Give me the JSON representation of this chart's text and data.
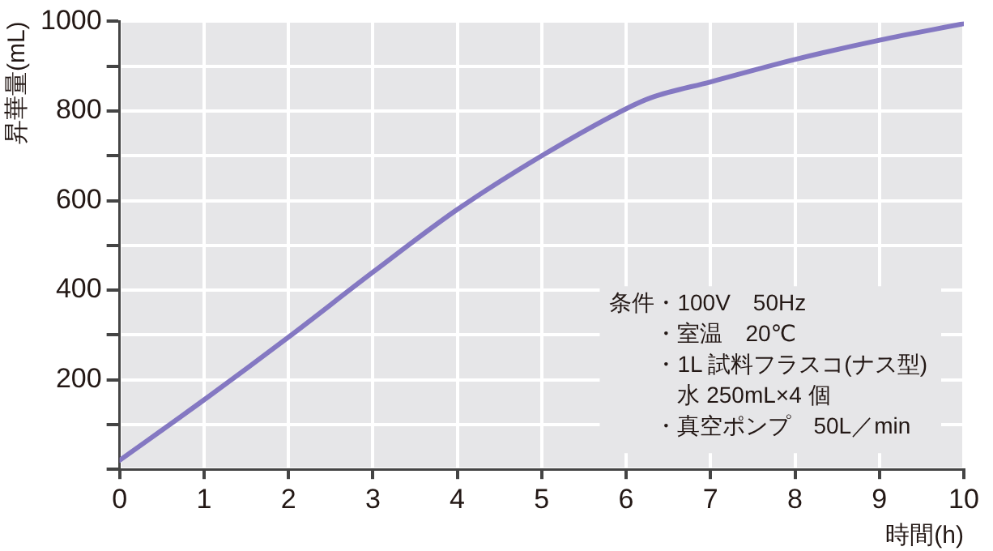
{
  "chart_data": {
    "type": "line",
    "xlabel": "時間(h)",
    "ylabel": "昇華量(mL)",
    "x": [
      0,
      1,
      2,
      3,
      4,
      5,
      6,
      6.3,
      7,
      8,
      9,
      10
    ],
    "series": [
      {
        "color": "#8478c2",
        "values": [
          20,
          155,
          295,
          440,
          580,
          700,
          805,
          830,
          865,
          915,
          958,
          995
        ]
      }
    ],
    "xlim": [
      0,
      10
    ],
    "xticks": [
      0,
      1,
      2,
      3,
      4,
      5,
      6,
      7,
      8,
      9,
      10
    ],
    "ylim": [
      0,
      1000
    ],
    "yticks": [
      {
        "value": 0,
        "label": null
      },
      {
        "value": 100,
        "label": null
      },
      200,
      {
        "value": 300,
        "label": null
      },
      400,
      {
        "value": 500,
        "label": null
      },
      600,
      {
        "value": 700,
        "label": null
      },
      800,
      {
        "value": 900,
        "label": null
      },
      1000
    ],
    "grid": true,
    "marker": "none",
    "line_style": "solid",
    "annotations": [
      "条件・100V　50Hz",
      "　　・室温　20℃",
      "　　・1L 試料フラスコ(ナス型)",
      "　　　水 250mL×4 個",
      "　　・真空ポンプ　50L／min"
    ]
  }
}
